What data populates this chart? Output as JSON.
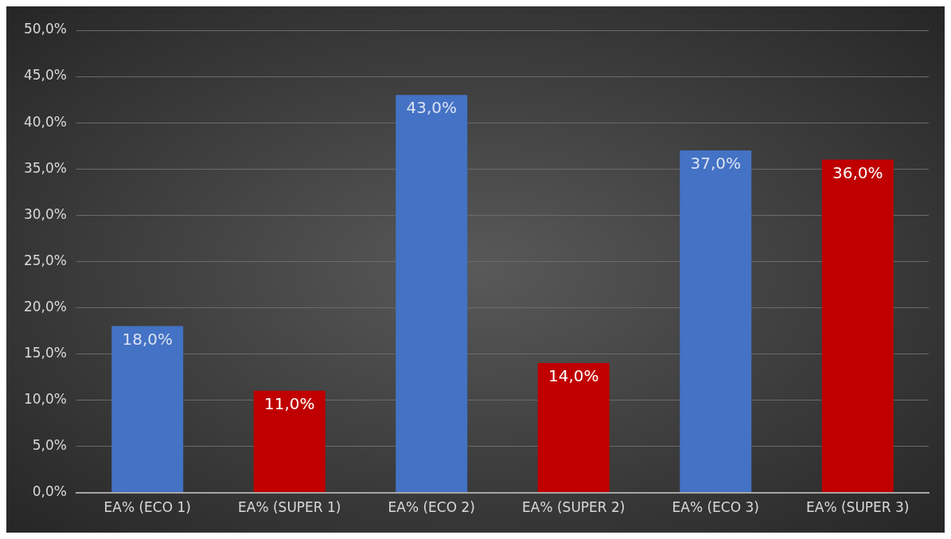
{
  "chart_data": {
    "type": "bar",
    "categories": [
      "EA% (ECO 1)",
      "EA% (SUPER 1)",
      "EA% (ECO 2)",
      "EA% (SUPER 2)",
      "EA% (ECO 3)",
      "EA% (SUPER 3)"
    ],
    "values": [
      18,
      11,
      43,
      14,
      37,
      36
    ],
    "colors": [
      "#4472c4",
      "#c00000",
      "#4472c4",
      "#c00000",
      "#4472c4",
      "#c00000"
    ],
    "value_labels": [
      "18,0%",
      "11,0%",
      "43,0%",
      "14,0%",
      "37,0%",
      "36,0%"
    ],
    "ylim": [
      0,
      50
    ],
    "yticks": [
      {
        "value": 0,
        "label": "0,0%"
      },
      {
        "value": 5,
        "label": "5,0%"
      },
      {
        "value": 10,
        "label": "10,0%"
      },
      {
        "value": 15,
        "label": "15,0%"
      },
      {
        "value": 20,
        "label": "20,0%"
      },
      {
        "value": 25,
        "label": "25,0%"
      },
      {
        "value": 30,
        "label": "30,0%"
      },
      {
        "value": 35,
        "label": "35,0%"
      },
      {
        "value": 40,
        "label": "40,0%"
      },
      {
        "value": 45,
        "label": "45,0%"
      },
      {
        "value": 50,
        "label": "50,0%"
      }
    ],
    "grid": "y",
    "legend": false
  }
}
